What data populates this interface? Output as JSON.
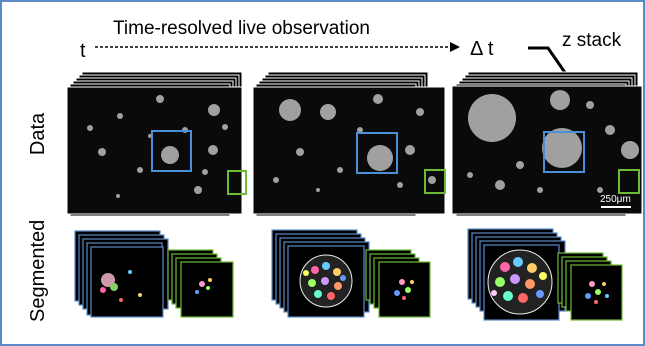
{
  "title": "Time-resolved live observation",
  "time_start": "t",
  "time_end": "Δ t",
  "z_label": "z stack",
  "row_labels": {
    "data": "Data",
    "segmented": "Segmented"
  },
  "scale_bar": "250μm",
  "colors": {
    "border": "#5b8bc7",
    "roi": "#4a90d9",
    "cell_roi": "#6dbb35",
    "background": "#ffffff"
  }
}
